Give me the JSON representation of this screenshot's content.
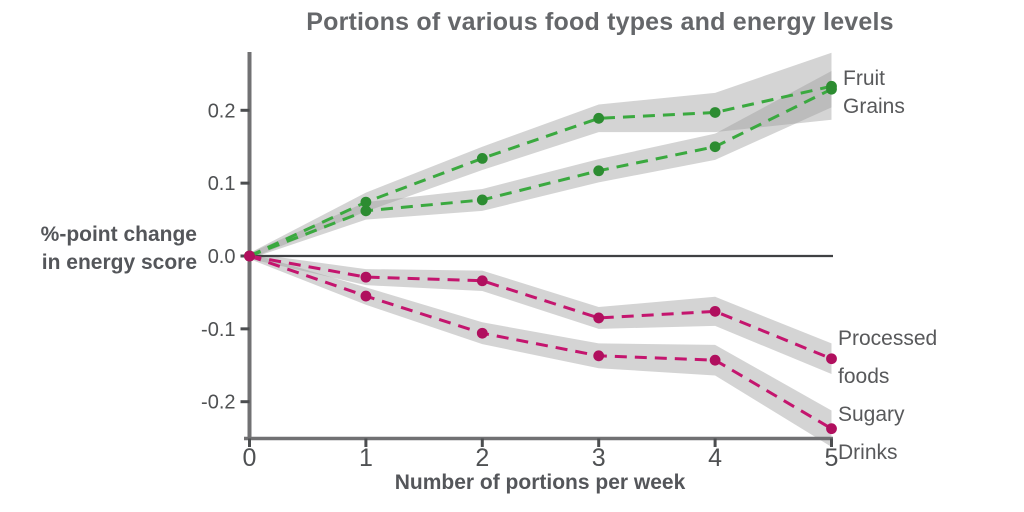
{
  "title": "Portions of various food types and energy levels",
  "ylabel": {
    "line1": "%-point change",
    "line2": "in energy score"
  },
  "xlabel": "Number of portions per week",
  "chart_data": {
    "type": "line",
    "x": [
      0,
      1,
      2,
      3,
      4,
      5
    ],
    "xtick_labels": [
      "0",
      "1",
      "2",
      "3",
      "4",
      "5"
    ],
    "ytick_values": [
      0.2,
      0.1,
      0.0,
      -0.1,
      -0.2
    ],
    "ytick_labels": [
      "0.2",
      "0.1",
      "0.0",
      "-0.1",
      "-0.2"
    ],
    "xlim": [
      0,
      5
    ],
    "ylim": [
      -0.25,
      0.28
    ],
    "grid": false,
    "zero_line": 0.0,
    "legend_position": "right-end-annotations",
    "band_color": "#a0a0a0",
    "band_opacity": 0.45,
    "line_style": "dashed",
    "series": [
      {
        "name": "Fruit",
        "line_color": "#3aa93f",
        "marker_color": "#2c8c31",
        "values": [
          0,
          0.074,
          0.134,
          0.189,
          0.197,
          0.233
        ],
        "band_halfwidth": [
          0.004,
          0.013,
          0.016,
          0.019,
          0.027,
          0.046
        ]
      },
      {
        "name": "Grains",
        "line_color": "#3aa93f",
        "marker_color": "#2c8c31",
        "values": [
          0,
          0.062,
          0.077,
          0.117,
          0.15,
          0.229
        ],
        "band_halfwidth": [
          0.004,
          0.012,
          0.015,
          0.016,
          0.018,
          0.025
        ]
      },
      {
        "name": "Processed foods",
        "line_color": "#c4156e",
        "marker_color": "#b00f5e",
        "values": [
          0,
          -0.029,
          -0.034,
          -0.085,
          -0.076,
          -0.141
        ],
        "band_halfwidth": [
          0.004,
          0.011,
          0.014,
          0.015,
          0.02,
          0.021
        ]
      },
      {
        "name": "Sugary Drinks",
        "line_color": "#c4156e",
        "marker_color": "#b00f5e",
        "values": [
          0,
          -0.055,
          -0.106,
          -0.137,
          -0.143,
          -0.237
        ],
        "band_halfwidth": [
          0.004,
          0.012,
          0.015,
          0.017,
          0.021,
          0.025
        ]
      }
    ]
  }
}
